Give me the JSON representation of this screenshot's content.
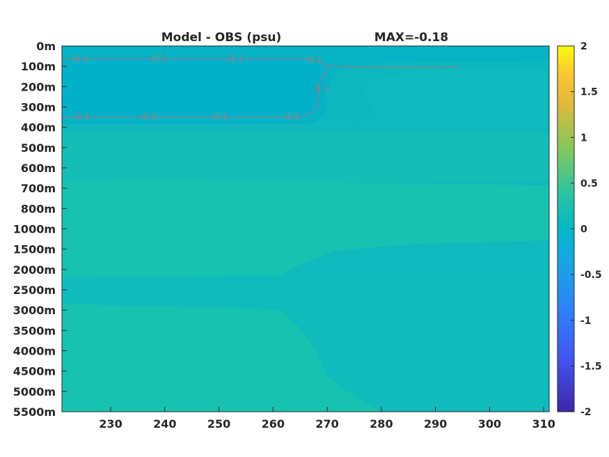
{
  "title": "Model - OBS (psu)",
  "max_label": "MAX=-0.18",
  "chart_data": {
    "type": "heatmap",
    "title": "Model - OBS (psu)",
    "annotation": "MAX=-0.18",
    "x_ticks": [
      230,
      240,
      250,
      260,
      270,
      280,
      290,
      300,
      310
    ],
    "xlim": [
      221,
      311
    ],
    "y_ticks": [
      "0m",
      "100m",
      "200m",
      "300m",
      "400m",
      "500m",
      "600m",
      "700m",
      "800m",
      "1000m",
      "1500m",
      "2000m",
      "2500m",
      "3000m",
      "3500m",
      "4000m",
      "4500m",
      "5000m",
      "5500m"
    ],
    "colorbar": {
      "range": [
        -2,
        2
      ],
      "ticks": [
        "2",
        "1.5",
        "1",
        "0.5",
        "0",
        "-0.5",
        "-1",
        "-1.5",
        "-2"
      ]
    },
    "contour_labels": [
      "-0.1",
      "-0.1",
      "-0.1",
      "-0.1",
      "-0.1",
      "-0.1",
      "-0.1",
      "-0.1",
      "-0.1"
    ],
    "colors": {
      "surface_layer": "#00b2c8",
      "background": "#0fb9bd",
      "mid_layer": "#14c0b3",
      "deep_layer": "#18c2b0"
    }
  }
}
